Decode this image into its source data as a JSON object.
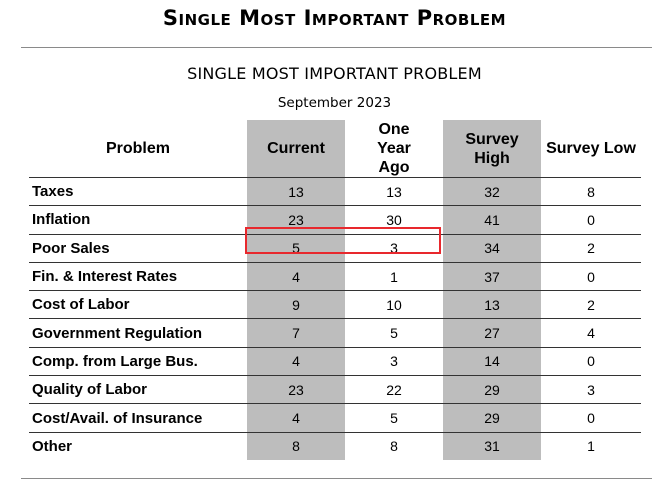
{
  "banner_title": "Single Most Important Problem",
  "chart_data": {
    "type": "table",
    "title": "SINGLE MOST IMPORTANT PROBLEM",
    "subtitle": "September 2023",
    "columns": [
      "Problem",
      "Current",
      "One Year Ago",
      "Survey High",
      "Survey Low"
    ],
    "rows": [
      {
        "problem": "Taxes",
        "current": "13",
        "year_ago": "13",
        "high": "32",
        "low": "8"
      },
      {
        "problem": "Inflation",
        "current": "23",
        "year_ago": "30",
        "high": "41",
        "low": "0"
      },
      {
        "problem": "Poor Sales",
        "current": "5",
        "year_ago": "3",
        "high": "34",
        "low": "2"
      },
      {
        "problem": "Fin. & Interest Rates",
        "current": "4",
        "year_ago": "1",
        "high": "37",
        "low": "0"
      },
      {
        "problem": "Cost of Labor",
        "current": "9",
        "year_ago": "10",
        "high": "13",
        "low": "2"
      },
      {
        "problem": "Government Regulation",
        "current": "7",
        "year_ago": "5",
        "high": "27",
        "low": "4"
      },
      {
        "problem": "Comp. from Large Bus.",
        "current": "4",
        "year_ago": "3",
        "high": "14",
        "low": "0"
      },
      {
        "problem": "Quality of Labor",
        "current": "23",
        "year_ago": "22",
        "high": "29",
        "low": "3"
      },
      {
        "problem": "Cost/Avail. of Insurance",
        "current": "4",
        "year_ago": "5",
        "high": "29",
        "low": "0"
      },
      {
        "problem": "Other",
        "current": "8",
        "year_ago": "8",
        "high": "31",
        "low": "1"
      }
    ],
    "shaded_columns": [
      "Current",
      "Survey High"
    ],
    "highlighted_row": "Poor Sales",
    "highlighted_columns": [
      "Current",
      "One Year Ago"
    ],
    "colors": {
      "shade": "#bdbdbd",
      "highlight": "#e8282d",
      "rule": "#8a8a8a"
    }
  }
}
